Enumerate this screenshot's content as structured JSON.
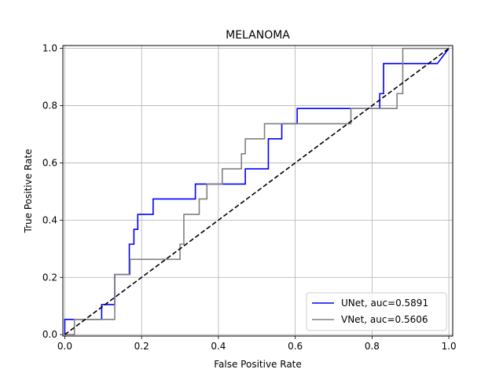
{
  "chart_data": {
    "type": "line",
    "title": "MELANOMA",
    "xlabel": "False Positive Rate",
    "ylabel": "True Positive Rate",
    "xlim": [
      -0.005,
      1.01
    ],
    "ylim": [
      -0.005,
      1.01
    ],
    "grid": true,
    "legend_position": "lower right",
    "xticks": [
      "0.0",
      "0.2",
      "0.4",
      "0.6",
      "0.8",
      "1.0"
    ],
    "yticks": [
      "0.0",
      "0.2",
      "0.4",
      "0.6",
      "0.8",
      "1.0"
    ],
    "series": [
      {
        "name": "UNet, auc=0.5891",
        "color": "#0000ff",
        "x": [
          0,
          0,
          0.096,
          0.096,
          0.13,
          0.13,
          0.168,
          0.168,
          0.18,
          0.18,
          0.19,
          0.19,
          0.23,
          0.23,
          0.34,
          0.34,
          0.47,
          0.47,
          0.53,
          0.53,
          0.565,
          0.565,
          0.605,
          0.605,
          0.82,
          0.82,
          0.83,
          0.83,
          0.97,
          1.0
        ],
        "y": [
          0,
          0.053,
          0.053,
          0.105,
          0.105,
          0.21,
          0.21,
          0.316,
          0.316,
          0.368,
          0.368,
          0.42,
          0.42,
          0.474,
          0.474,
          0.526,
          0.526,
          0.579,
          0.579,
          0.684,
          0.684,
          0.737,
          0.737,
          0.79,
          0.79,
          0.842,
          0.842,
          0.947,
          0.947,
          1.0
        ]
      },
      {
        "name": "VNet, auc=0.5606",
        "color": "#808080",
        "x": [
          0,
          0.025,
          0.025,
          0.13,
          0.13,
          0.17,
          0.17,
          0.3,
          0.3,
          0.31,
          0.31,
          0.35,
          0.35,
          0.37,
          0.37,
          0.41,
          0.41,
          0.46,
          0.46,
          0.47,
          0.47,
          0.52,
          0.52,
          0.745,
          0.745,
          0.755,
          0.755,
          0.865,
          0.865,
          0.88,
          0.88,
          1.0
        ],
        "y": [
          0,
          0,
          0.053,
          0.053,
          0.21,
          0.21,
          0.263,
          0.263,
          0.316,
          0.316,
          0.42,
          0.42,
          0.474,
          0.474,
          0.526,
          0.526,
          0.579,
          0.579,
          0.632,
          0.632,
          0.684,
          0.684,
          0.737,
          0.737,
          0.79,
          0.79,
          0.79,
          0.79,
          0.842,
          0.842,
          1.0,
          1.0
        ]
      },
      {
        "name": "",
        "color": "#000000",
        "dashed": true,
        "x": [
          0,
          1
        ],
        "y": [
          0,
          1
        ]
      }
    ]
  }
}
